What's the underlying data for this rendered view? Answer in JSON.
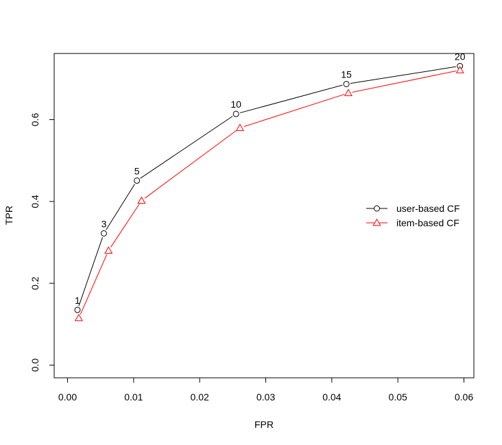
{
  "chart_data": {
    "type": "line",
    "title": "",
    "xlabel": "FPR",
    "ylabel": "TPR",
    "xlim": [
      0.0,
      0.06
    ],
    "ylim": [
      0.0,
      0.7
    ],
    "x_ticks": [
      "0.00",
      "0.01",
      "0.02",
      "0.03",
      "0.04",
      "0.05",
      "0.06"
    ],
    "y_ticks": [
      "0.0",
      "0.2",
      "0.4",
      "0.6"
    ],
    "grid": false,
    "legend_position": "right",
    "series": [
      {
        "name": "user-based CF",
        "color": "#000000",
        "marker": "circle",
        "x": [
          0.0015,
          0.0055,
          0.0105,
          0.0255,
          0.0422,
          0.0594
        ],
        "y": [
          0.135,
          0.322,
          0.451,
          0.614,
          0.687,
          0.731
        ],
        "point_labels": [
          "1",
          "3",
          "5",
          "10",
          "15",
          "20"
        ]
      },
      {
        "name": "item-based CF",
        "color": "#ff0000",
        "marker": "triangle",
        "x": [
          0.0017,
          0.0062,
          0.0112,
          0.0261,
          0.0425,
          0.0594
        ],
        "y": [
          0.115,
          0.28,
          0.402,
          0.58,
          0.665,
          0.721
        ]
      }
    ]
  }
}
